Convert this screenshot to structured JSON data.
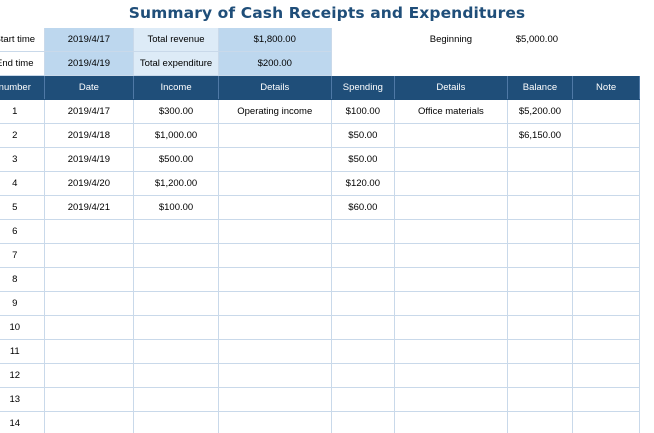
{
  "title": "Summary of Cash Receipts and Expenditures",
  "summary": {
    "start_time_label": "Start time",
    "start_time_value": "2019/4/17",
    "end_time_label": "End time",
    "end_time_value": "2019/4/19",
    "total_revenue_label": "Total revenue",
    "total_revenue_value": "$1,800.00",
    "total_expenditure_label": "Total expenditure",
    "total_expenditure_value": "$200.00",
    "beginning_label": "Beginning",
    "beginning_value": "$5,000.00"
  },
  "columns": [
    "number",
    "Date",
    "Income",
    "Details",
    "Spending",
    "Details",
    "Balance",
    "Note"
  ],
  "rows": [
    [
      "1",
      "2019/4/17",
      "$300.00",
      "Operating income",
      "$100.00",
      "Office materials",
      "$5,200.00",
      ""
    ],
    [
      "2",
      "2019/4/18",
      "$1,000.00",
      "",
      "$50.00",
      "",
      "$6,150.00",
      ""
    ],
    [
      "3",
      "2019/4/19",
      "$500.00",
      "",
      "$50.00",
      "",
      "",
      ""
    ],
    [
      "4",
      "2019/4/20",
      "$1,200.00",
      "",
      "$120.00",
      "",
      "",
      ""
    ],
    [
      "5",
      "2019/4/21",
      "$100.00",
      "",
      "$60.00",
      "",
      "",
      ""
    ],
    [
      "6",
      "",
      "",
      "",
      "",
      "",
      "",
      ""
    ],
    [
      "7",
      "",
      "",
      "",
      "",
      "",
      "",
      ""
    ],
    [
      "8",
      "",
      "",
      "",
      "",
      "",
      "",
      ""
    ],
    [
      "9",
      "",
      "",
      "",
      "",
      "",
      "",
      ""
    ],
    [
      "10",
      "",
      "",
      "",
      "",
      "",
      "",
      ""
    ],
    [
      "11",
      "",
      "",
      "",
      "",
      "",
      "",
      ""
    ],
    [
      "12",
      "",
      "",
      "",
      "",
      "",
      "",
      ""
    ],
    [
      "13",
      "",
      "",
      "",
      "",
      "",
      "",
      ""
    ],
    [
      "14",
      "",
      "",
      "",
      "",
      "",
      "",
      ""
    ]
  ],
  "colors": {
    "header_bg": "#1f4e79",
    "title": "#1f4e79",
    "summary_dark": "#bdd7ee",
    "summary_light": "#ddebf7",
    "grid": "#c9d9ea"
  }
}
